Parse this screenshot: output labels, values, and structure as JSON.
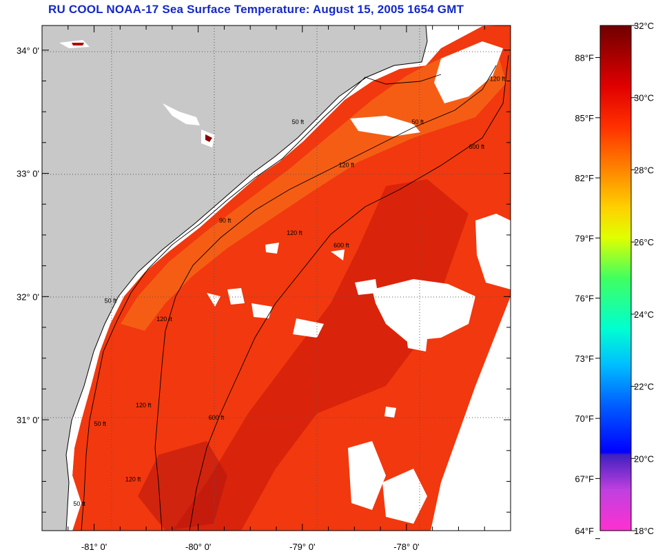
{
  "title": "RU COOL  NOAA-17  Sea Surface Temperature:  August 15, 2005 1654 GMT",
  "colors": {
    "land": "#c8c8c8",
    "cloud": "#ffffff",
    "title": "#1428c8"
  },
  "map": {
    "lat_range": [
      30.1,
      34.2
    ],
    "lon_range": [
      -81.5,
      -77.0
    ],
    "lat_ticks": [
      {
        "value": 34.0,
        "label": "34° 0'"
      },
      {
        "value": 33.0,
        "label": "33° 0'"
      },
      {
        "value": 32.0,
        "label": "32° 0'"
      },
      {
        "value": 31.0,
        "label": "31° 0'"
      }
    ],
    "lon_ticks": [
      {
        "value": -81.0,
        "label": "-81° 0'"
      },
      {
        "value": -80.0,
        "label": "-80° 0'"
      },
      {
        "value": -79.0,
        "label": "-79° 0'"
      },
      {
        "value": -78.0,
        "label": "-78° 0'"
      }
    ],
    "contour_labels": [
      {
        "text": "50 ft",
        "lon": -77.95,
        "lat": 33.4
      },
      {
        "text": "50 ft",
        "lon": -79.1,
        "lat": 33.4
      },
      {
        "text": "120 ft",
        "lon": -77.2,
        "lat": 33.75
      },
      {
        "text": "600 ft",
        "lon": -77.4,
        "lat": 33.2
      },
      {
        "text": "120 ft",
        "lon": -78.65,
        "lat": 33.05
      },
      {
        "text": "90 ft",
        "lon": -79.8,
        "lat": 32.6
      },
      {
        "text": "120 ft",
        "lon": -79.15,
        "lat": 32.5
      },
      {
        "text": "600 ft",
        "lon": -78.7,
        "lat": 32.4
      },
      {
        "text": "50 ft",
        "lon": -80.9,
        "lat": 31.95
      },
      {
        "text": "120 ft",
        "lon": -80.4,
        "lat": 31.8
      },
      {
        "text": "50 ft",
        "lon": -81.0,
        "lat": 30.95
      },
      {
        "text": "120 ft",
        "lon": -80.6,
        "lat": 31.1
      },
      {
        "text": "600 ft",
        "lon": -79.9,
        "lat": 31.0
      },
      {
        "text": "120 ft",
        "lon": -80.7,
        "lat": 30.5
      },
      {
        "text": "50 ft",
        "lon": -81.2,
        "lat": 30.3
      }
    ]
  },
  "colorbar": {
    "fahrenheit_labels": [
      "88°F",
      "85°F",
      "82°F",
      "79°F",
      "76°F",
      "73°F",
      "70°F",
      "67°F",
      "64°F"
    ],
    "celsius_labels": [
      "32°C",
      "30°C",
      "28°C",
      "26°C",
      "24°C",
      "22°C",
      "20°C",
      "18°C"
    ],
    "fahrenheit_values": [
      88,
      85,
      82,
      79,
      76,
      73,
      70,
      67,
      64
    ],
    "celsius_values": [
      32,
      30,
      28,
      26,
      24,
      22,
      20,
      18
    ],
    "range_c": [
      18,
      32
    ]
  }
}
